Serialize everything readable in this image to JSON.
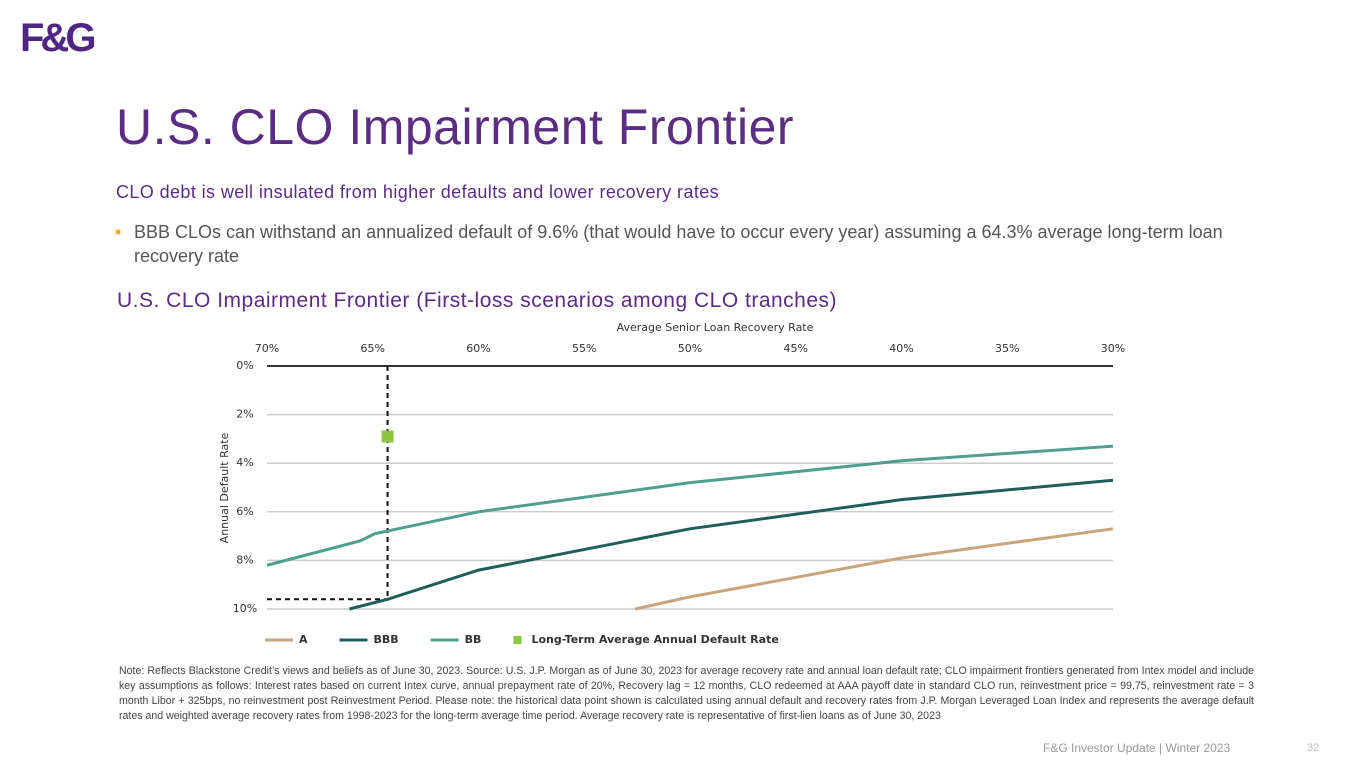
{
  "logo": "F&G",
  "title": "U.S. CLO Impairment Frontier",
  "subtitle": "CLO debt is well insulated from higher defaults and lower recovery rates",
  "bullets": [
    "BBB CLOs can withstand an annualized default of 9.6% (that would have to occur every year) assuming a 64.3% average long-term loan recovery rate"
  ],
  "chart_data": {
    "type": "line",
    "title": "U.S. CLO Impairment Frontier (First-loss scenarios among CLO tranches)",
    "x_label": "Average Senior Loan Recovery Rate",
    "y_label": "Annual Default Rate",
    "xlim": [
      70,
      30
    ],
    "xticks": [
      {
        "value": 70,
        "label": "70%"
      },
      {
        "value": 65,
        "label": "65%"
      },
      {
        "value": 60,
        "label": "60%"
      },
      {
        "value": 55,
        "label": "55%"
      },
      {
        "value": 50,
        "label": "50%"
      },
      {
        "value": 45,
        "label": "45%"
      },
      {
        "value": 40,
        "label": "40%"
      },
      {
        "value": 35,
        "label": "35%"
      },
      {
        "value": 30,
        "label": "30%"
      }
    ],
    "ylim": [
      0,
      10
    ],
    "y_inverted": true,
    "yticks": [
      {
        "value": 0,
        "label": "0%"
      },
      {
        "value": 2,
        "label": "2%"
      },
      {
        "value": 4,
        "label": "4%"
      },
      {
        "value": 6,
        "label": "6%"
      },
      {
        "value": 8,
        "label": "8%"
      },
      {
        "value": 10,
        "label": "10%"
      }
    ],
    "grid": true,
    "series": [
      {
        "name": "A",
        "color": "#c9a57f",
        "x": [
          52.6,
          50,
          40,
          30
        ],
        "values": [
          10,
          9.5,
          7.9,
          6.7
        ]
      },
      {
        "name": "BBB",
        "color": "#1f5f5b",
        "x": [
          66.1,
          64.3,
          60,
          50,
          40,
          30
        ],
        "values": [
          10,
          9.6,
          8.4,
          6.7,
          5.5,
          4.7
        ]
      },
      {
        "name": "BB",
        "color": "#4e9f8b",
        "x": [
          70,
          65.6,
          64.9,
          60,
          50,
          40,
          30
        ],
        "values": [
          8.2,
          7.2,
          6.9,
          6.0,
          4.8,
          3.9,
          3.3
        ]
      },
      {
        "name": "Long-Term Average Annual Default Rate",
        "type": "scatter",
        "color": "#8dc63f",
        "x": [
          64.3
        ],
        "values": [
          2.9
        ]
      }
    ],
    "reference_point": {
      "x": 64.3,
      "y": 9.6
    }
  },
  "note": "Note: Reflects Blackstone Credit’s views and beliefs as of June 30, 2023. Source: U.S. J.P. Morgan as of June 30, 2023 for average recovery rate and annual loan default rate; CLO impairment frontiers generated from Intex model and include key assumptions as follows: Interest rates based on current Intex curve, annual prepayment rate of 20%, Recovery lag = 12 months, CLO redeemed at AAA payoff date in standard CLO run, reinvestment price = 99.75, reinvestment rate = 3 month Libor + 325bps, no reinvestment post Reinvestment Period. Please note: the historical data point shown is calculated using annual default and recovery rates from J.P. Morgan Leveraged Loan Index and represents the average default rates and weighted average recovery rates from 1998-2023 for the long-term average time period. Average recovery rate is representative of first-lien loans as of June 30, 2023",
  "footer": "F&G Investor Update | Winter 2023",
  "page_number": 32
}
